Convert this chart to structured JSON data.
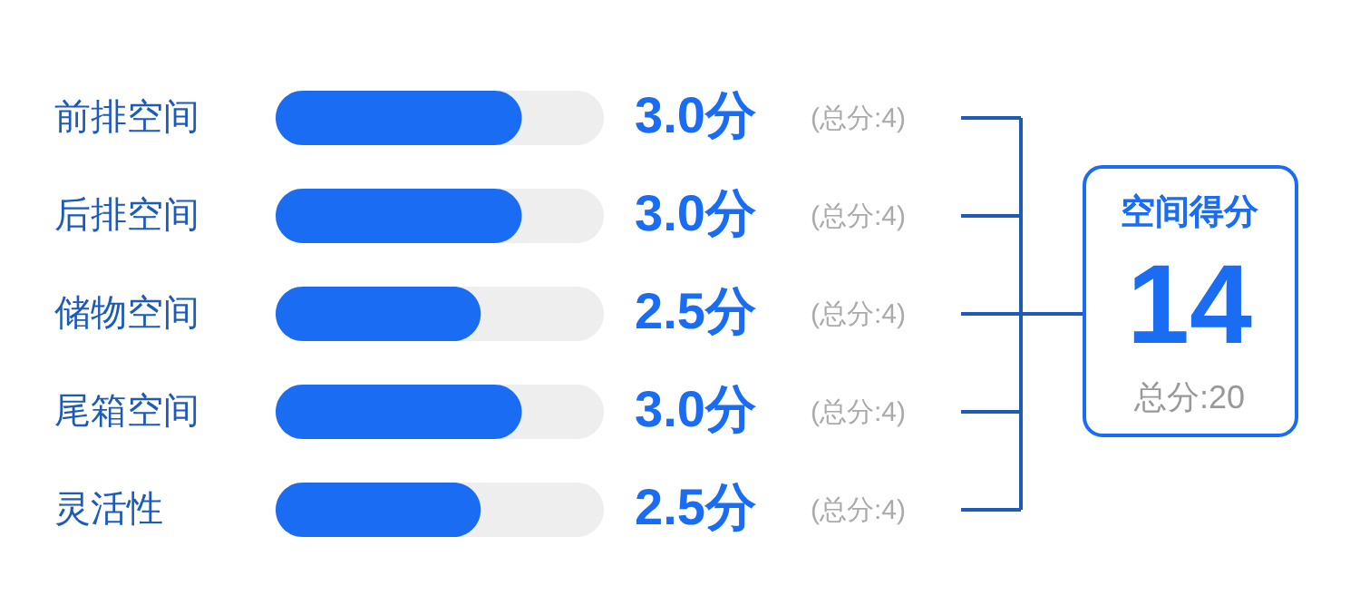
{
  "chart_data": {
    "type": "bar",
    "orientation": "horizontal",
    "categories": [
      "前排空间",
      "后排空间",
      "储物空间",
      "尾箱空间",
      "灵活性"
    ],
    "values": [
      3.0,
      3.0,
      2.5,
      3.0,
      2.5
    ],
    "color": "#1a6cf2",
    "xlim": [
      0,
      4
    ],
    "value_labels": [
      "3.0分",
      "3.0分",
      "2.5分",
      "3.0分",
      "2.5分"
    ],
    "annotations": [
      "(总分:4)",
      "(总分:4)",
      "(总分:4)",
      "(总分:4)",
      "(总分:4)",
      "空间得分",
      "14",
      "总分:20"
    ]
  }
}
